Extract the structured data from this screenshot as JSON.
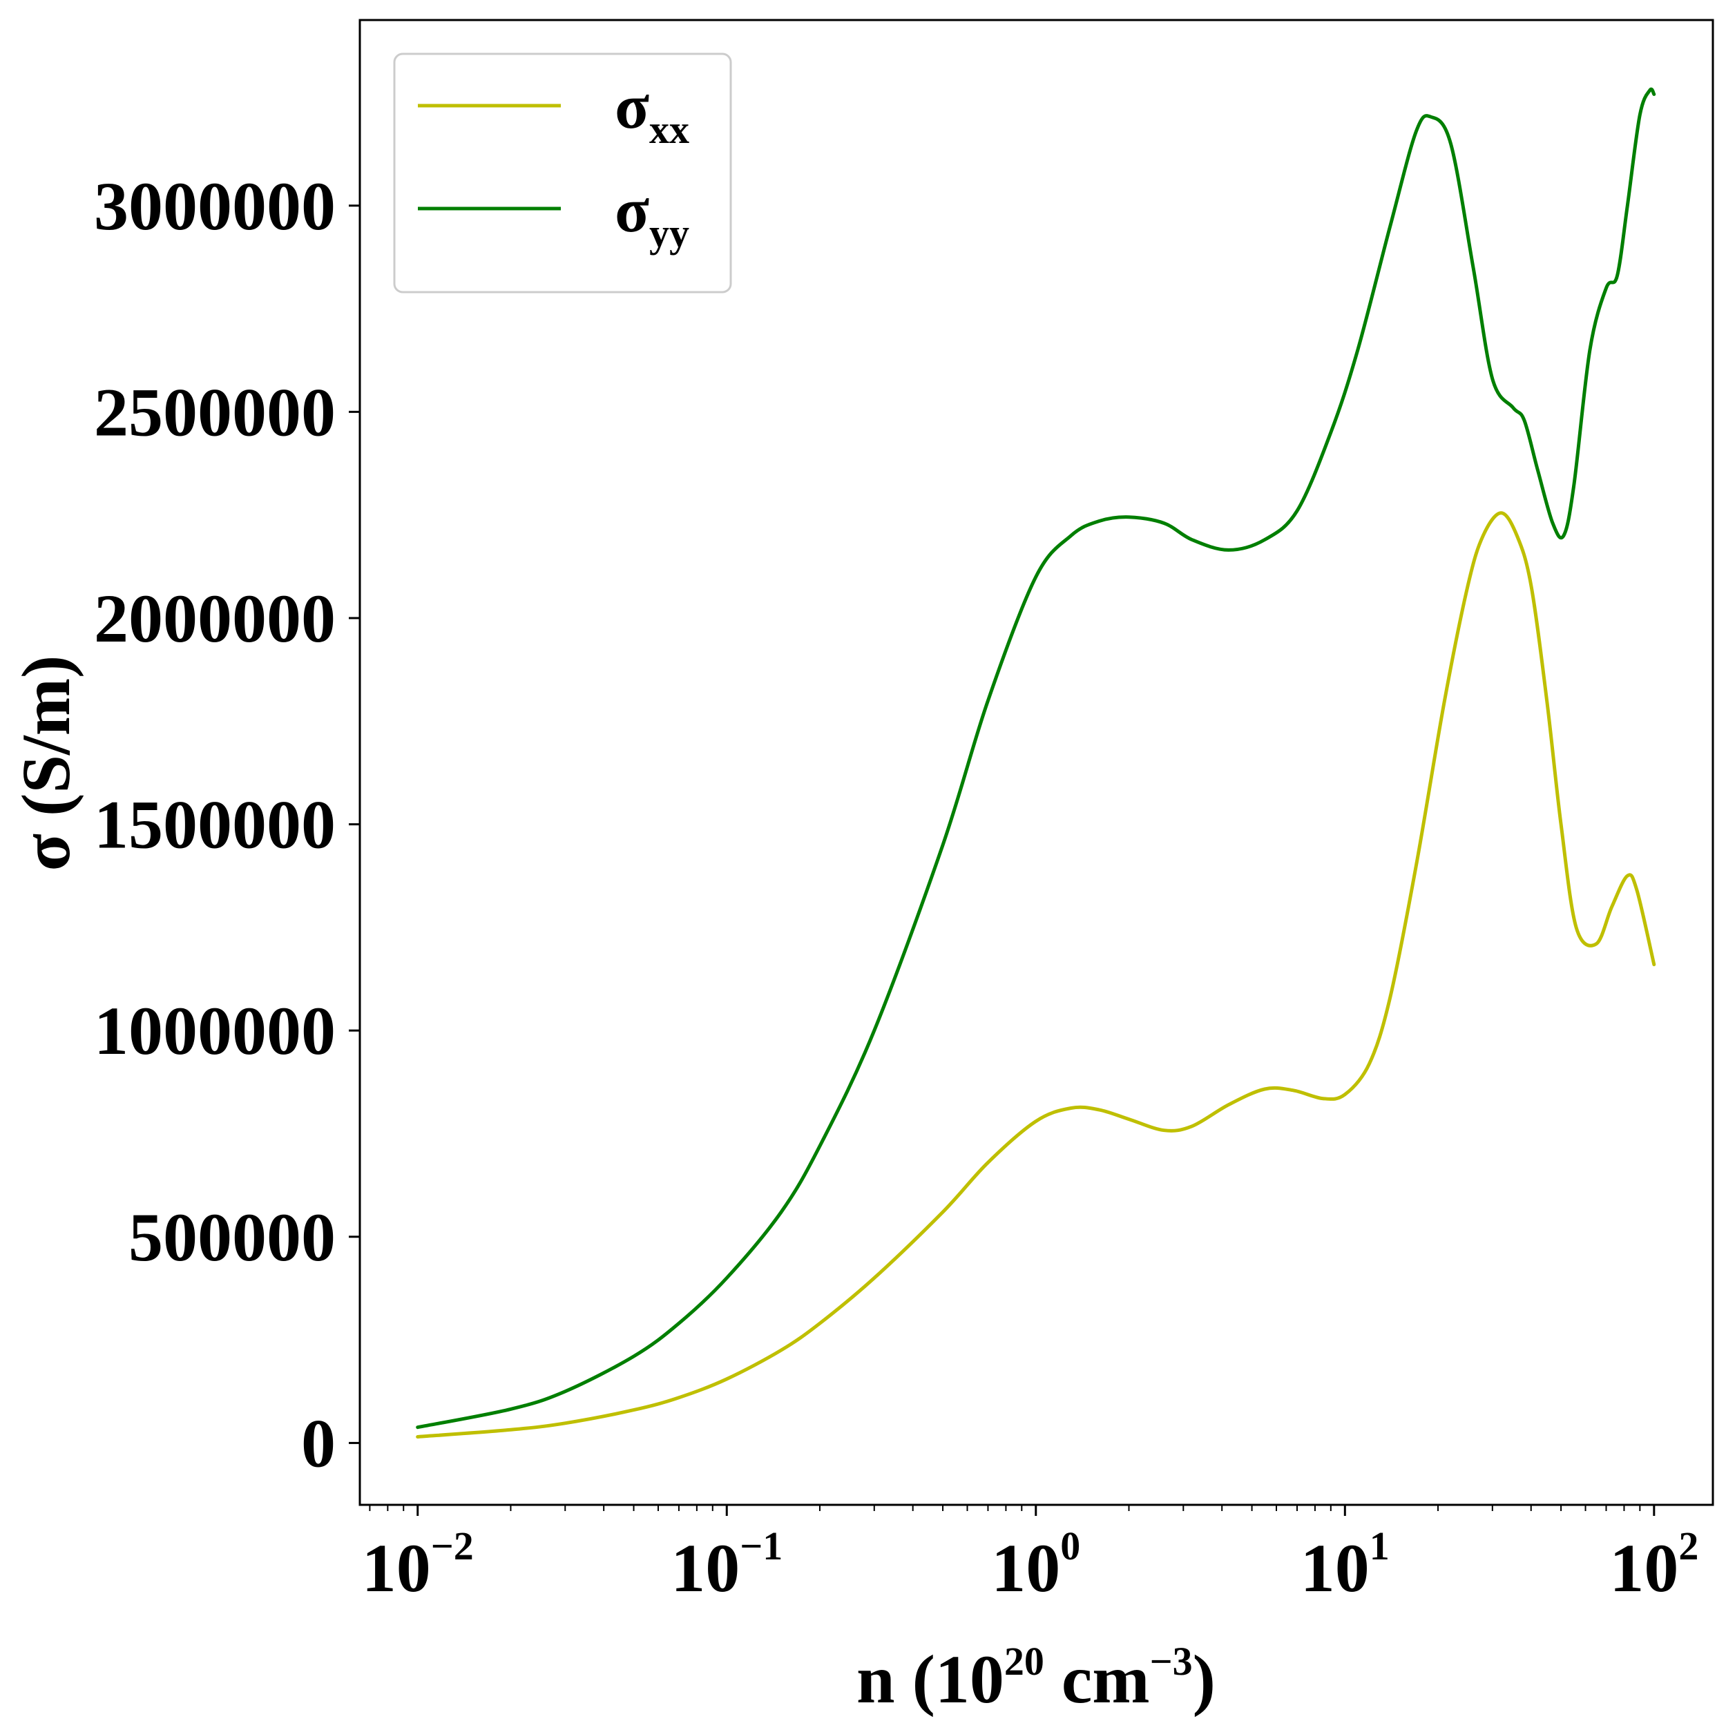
{
  "chart_data": {
    "type": "line",
    "xlabel": {
      "prefix": "n (10",
      "exp1": "20",
      "middle": " cm",
      "exp2": "−3",
      "suffix": ")"
    },
    "ylabel": "σ (S/m)",
    "xscale": "log",
    "xlim": [
      0.0065,
      155
    ],
    "ylim": [
      -150000,
      3450000
    ],
    "legend_position": "top-left",
    "grid": false,
    "x_ticks": [
      {
        "value": 0.01,
        "base": "10",
        "exp": "−2"
      },
      {
        "value": 0.1,
        "base": "10",
        "exp": "−1"
      },
      {
        "value": 1,
        "base": "10",
        "exp": "0"
      },
      {
        "value": 10,
        "base": "10",
        "exp": "1"
      },
      {
        "value": 100,
        "base": "10",
        "exp": "2"
      }
    ],
    "y_ticks": [
      {
        "value": 0,
        "label": "0"
      },
      {
        "value": 500000,
        "label": "500000"
      },
      {
        "value": 1000000,
        "label": "1000000"
      },
      {
        "value": 1500000,
        "label": "1500000"
      },
      {
        "value": 2000000,
        "label": "2000000"
      },
      {
        "value": 2500000,
        "label": "2500000"
      },
      {
        "value": 3000000,
        "label": "3000000"
      }
    ],
    "series": [
      {
        "name": "σxx",
        "name_base": "σ",
        "name_sub": "xx",
        "color": "#bfbf00",
        "points": [
          [
            0.01,
            15000
          ],
          [
            0.02,
            32000
          ],
          [
            0.03,
            48000
          ],
          [
            0.05,
            80000
          ],
          [
            0.07,
            110000
          ],
          [
            0.1,
            155000
          ],
          [
            0.15,
            225000
          ],
          [
            0.2,
            290000
          ],
          [
            0.3,
            400000
          ],
          [
            0.5,
            560000
          ],
          [
            0.7,
            680000
          ],
          [
            1.0,
            780000
          ],
          [
            1.3,
            812000
          ],
          [
            1.6,
            808000
          ],
          [
            2.0,
            785000
          ],
          [
            2.6,
            758000
          ],
          [
            3.2,
            768000
          ],
          [
            4.2,
            820000
          ],
          [
            5.5,
            858000
          ],
          [
            6.8,
            855000
          ],
          [
            8.5,
            835000
          ],
          [
            10,
            845000
          ],
          [
            12,
            920000
          ],
          [
            14,
            1080000
          ],
          [
            17,
            1400000
          ],
          [
            21,
            1800000
          ],
          [
            25,
            2080000
          ],
          [
            28,
            2200000
          ],
          [
            32,
            2255000
          ],
          [
            36,
            2200000
          ],
          [
            40,
            2080000
          ],
          [
            45,
            1800000
          ],
          [
            50,
            1500000
          ],
          [
            56,
            1250000
          ],
          [
            65,
            1210000
          ],
          [
            73,
            1300000
          ],
          [
            82,
            1375000
          ],
          [
            88,
            1340000
          ],
          [
            100,
            1160000
          ]
        ]
      },
      {
        "name": "σyy",
        "name_base": "σ",
        "name_sub": "yy",
        "color": "#007f00",
        "points": [
          [
            0.01,
            38000
          ],
          [
            0.02,
            82000
          ],
          [
            0.03,
            125000
          ],
          [
            0.05,
            210000
          ],
          [
            0.07,
            290000
          ],
          [
            0.1,
            400000
          ],
          [
            0.15,
            560000
          ],
          [
            0.2,
            720000
          ],
          [
            0.3,
            1000000
          ],
          [
            0.5,
            1450000
          ],
          [
            0.7,
            1800000
          ],
          [
            1.0,
            2100000
          ],
          [
            1.3,
            2200000
          ],
          [
            1.6,
            2235000
          ],
          [
            2.0,
            2245000
          ],
          [
            2.6,
            2230000
          ],
          [
            3.2,
            2190000
          ],
          [
            4.2,
            2165000
          ],
          [
            5.5,
            2190000
          ],
          [
            7.0,
            2260000
          ],
          [
            9.0,
            2450000
          ],
          [
            11,
            2650000
          ],
          [
            14,
            2950000
          ],
          [
            17,
            3180000
          ],
          [
            19,
            3215000
          ],
          [
            22,
            3150000
          ],
          [
            26,
            2850000
          ],
          [
            30,
            2580000
          ],
          [
            35,
            2510000
          ],
          [
            38,
            2480000
          ],
          [
            42,
            2360000
          ],
          [
            47,
            2230000
          ],
          [
            51,
            2200000
          ],
          [
            55,
            2320000
          ],
          [
            62,
            2650000
          ],
          [
            70,
            2800000
          ],
          [
            76,
            2830000
          ],
          [
            82,
            3000000
          ],
          [
            90,
            3220000
          ],
          [
            97,
            3280000
          ],
          [
            100,
            3270000
          ]
        ]
      }
    ]
  }
}
